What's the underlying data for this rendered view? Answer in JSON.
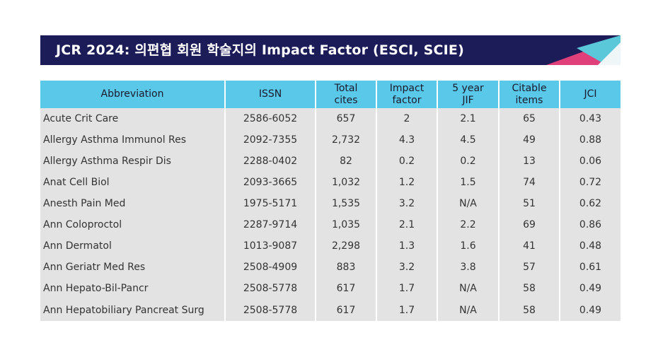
{
  "banner": {
    "title": "JCR 2024: 의편협 회원 학술지의 Impact Factor (ESCI, SCIE)",
    "colors": {
      "background": "#1c1c58",
      "accent_pink": "#e0407a",
      "accent_teal": "#5ac8d8"
    }
  },
  "table": {
    "headers": [
      "Abbreviation",
      "ISSN",
      "Total\ncites",
      "Impact\nfactor",
      "5 year\nJIF",
      "Citable\nitems",
      "JCI"
    ],
    "header_color": "#5ac8e8",
    "row_color": "#e3e3e3",
    "rows": [
      [
        "Acute Crit Care",
        "2586-6052",
        "657",
        "2",
        "2.1",
        "65",
        "0.43"
      ],
      [
        "Allergy Asthma Immunol Res",
        "2092-7355",
        "2,732",
        "4.3",
        "4.5",
        "49",
        "0.88"
      ],
      [
        "Allergy Asthma Respir Dis",
        "2288-0402",
        "82",
        "0.2",
        "0.2",
        "13",
        "0.06"
      ],
      [
        "Anat Cell Biol",
        "2093-3665",
        "1,032",
        "1.2",
        "1.5",
        "74",
        "0.72"
      ],
      [
        "Anesth Pain Med",
        "1975-5171",
        "1,535",
        "3.2",
        "N/A",
        "51",
        "0.62"
      ],
      [
        "Ann Coloproctol",
        "2287-9714",
        "1,035",
        "2.1",
        "2.2",
        "69",
        "0.86"
      ],
      [
        "Ann Dermatol",
        "1013-9087",
        "2,298",
        "1.3",
        "1.6",
        "41",
        "0.48"
      ],
      [
        "Ann Geriatr Med Res",
        "2508-4909",
        "883",
        "3.2",
        "3.8",
        "57",
        "0.61"
      ],
      [
        "Ann Hepato-Bil-Pancr",
        "2508-5778",
        "617",
        "1.7",
        "N/A",
        "58",
        "0.49"
      ],
      [
        "Ann Hepatobiliary Pancreat Surg",
        "2508-5778",
        "617",
        "1.7",
        "N/A",
        "58",
        "0.49"
      ]
    ]
  }
}
